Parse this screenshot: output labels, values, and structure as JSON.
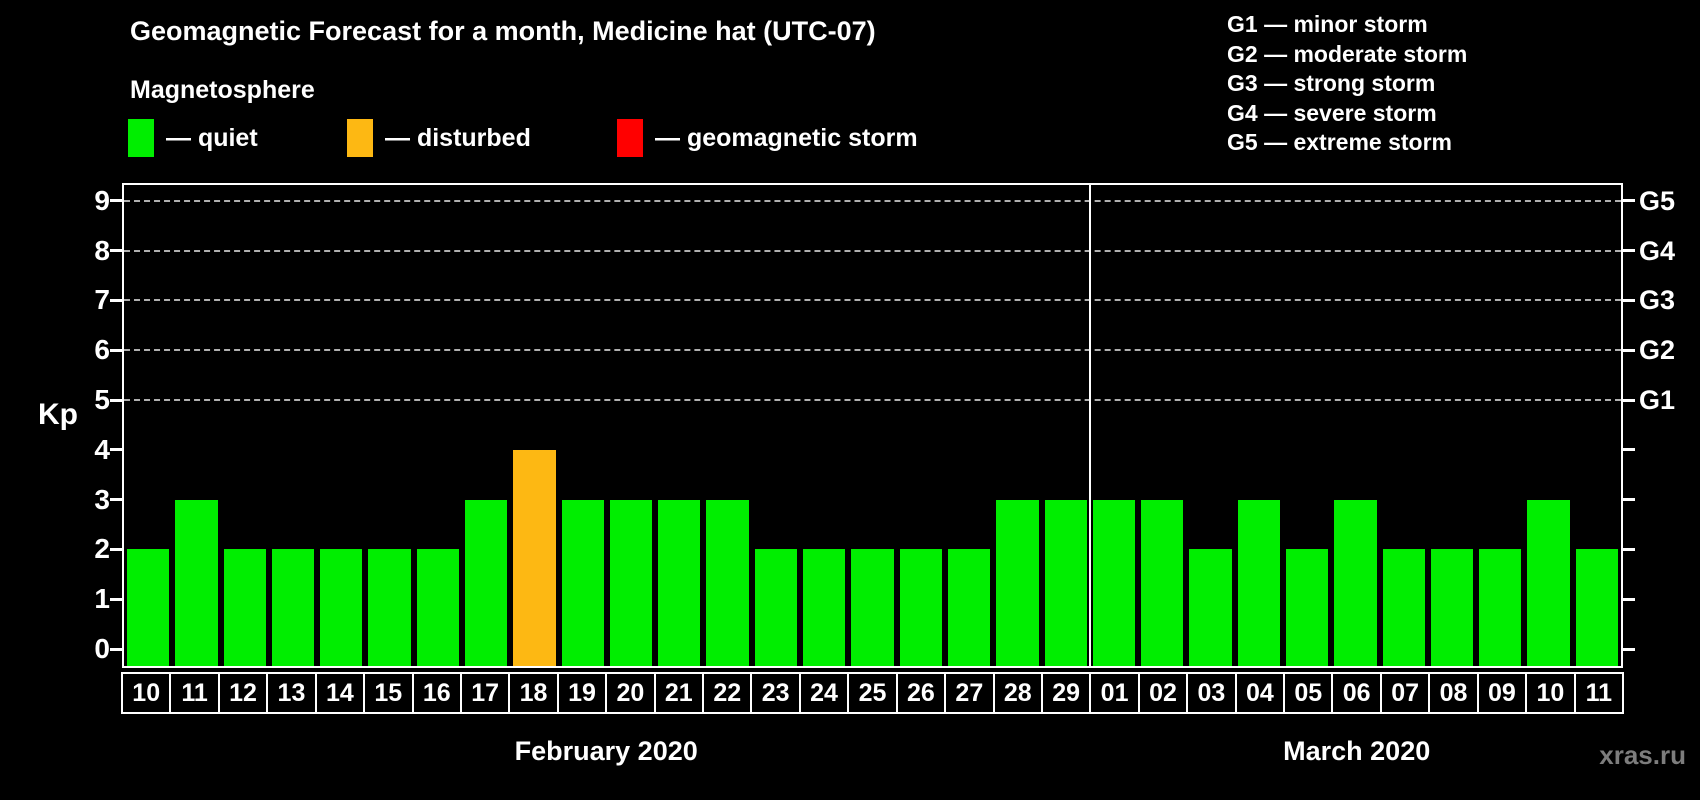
{
  "title": "Geomagnetic Forecast for a month, Medicine hat (UTC-07)",
  "subtitle": "Magnetosphere",
  "colors": {
    "quiet": "#00ee00",
    "disturbed": "#fdb813",
    "storm": "#ff0000",
    "gridline": "#b0b0b0",
    "watermark_gray": "#7d7d7d"
  },
  "legend": {
    "items": [
      {
        "key": "quiet",
        "label": "— quiet"
      },
      {
        "key": "disturbed",
        "label": "— disturbed"
      },
      {
        "key": "storm",
        "label": "— geomagnetic storm"
      }
    ]
  },
  "g_legend": [
    "G1 — minor storm",
    "G2 — moderate storm",
    "G3 — strong storm",
    "G4 — severe storm",
    "G5 — extreme storm"
  ],
  "watermark": "xras.ru",
  "chart_data": {
    "type": "bar",
    "title": "Geomagnetic Forecast for a month, Medicine hat (UTC-07)",
    "xlabel": "",
    "ylabel": "Kp",
    "ylim": [
      0,
      9
    ],
    "grid": "dashed horizontal at Kp 5-9 only",
    "legend_position": "top-left",
    "y_ticks": [
      0,
      1,
      2,
      3,
      4,
      5,
      6,
      7,
      8,
      9
    ],
    "grid_levels": [
      5,
      6,
      7,
      8,
      9
    ],
    "right_axis_labels": [
      {
        "label": "G1",
        "kp": 5
      },
      {
        "label": "G2",
        "kp": 6
      },
      {
        "label": "G3",
        "kp": 7
      },
      {
        "label": "G4",
        "kp": 8
      },
      {
        "label": "G5",
        "kp": 9
      }
    ],
    "months": [
      {
        "label": "February 2020",
        "days": 20
      },
      {
        "label": "March 2020",
        "days": 11
      }
    ],
    "categories": [
      "10",
      "11",
      "12",
      "13",
      "14",
      "15",
      "16",
      "17",
      "18",
      "19",
      "20",
      "21",
      "22",
      "23",
      "24",
      "25",
      "26",
      "27",
      "28",
      "29",
      "01",
      "02",
      "03",
      "04",
      "05",
      "06",
      "07",
      "08",
      "09",
      "10",
      "11"
    ],
    "values": [
      2,
      3,
      2,
      2,
      2,
      2,
      2,
      3,
      4,
      3,
      3,
      3,
      3,
      2,
      2,
      2,
      2,
      2,
      3,
      3,
      3,
      3,
      2,
      3,
      2,
      3,
      2,
      2,
      2,
      3,
      2
    ],
    "statuses": [
      "quiet",
      "quiet",
      "quiet",
      "quiet",
      "quiet",
      "quiet",
      "quiet",
      "quiet",
      "disturbed",
      "quiet",
      "quiet",
      "quiet",
      "quiet",
      "quiet",
      "quiet",
      "quiet",
      "quiet",
      "quiet",
      "quiet",
      "quiet",
      "quiet",
      "quiet",
      "quiet",
      "quiet",
      "quiet",
      "quiet",
      "quiet",
      "quiet",
      "quiet",
      "quiet",
      "quiet"
    ]
  }
}
